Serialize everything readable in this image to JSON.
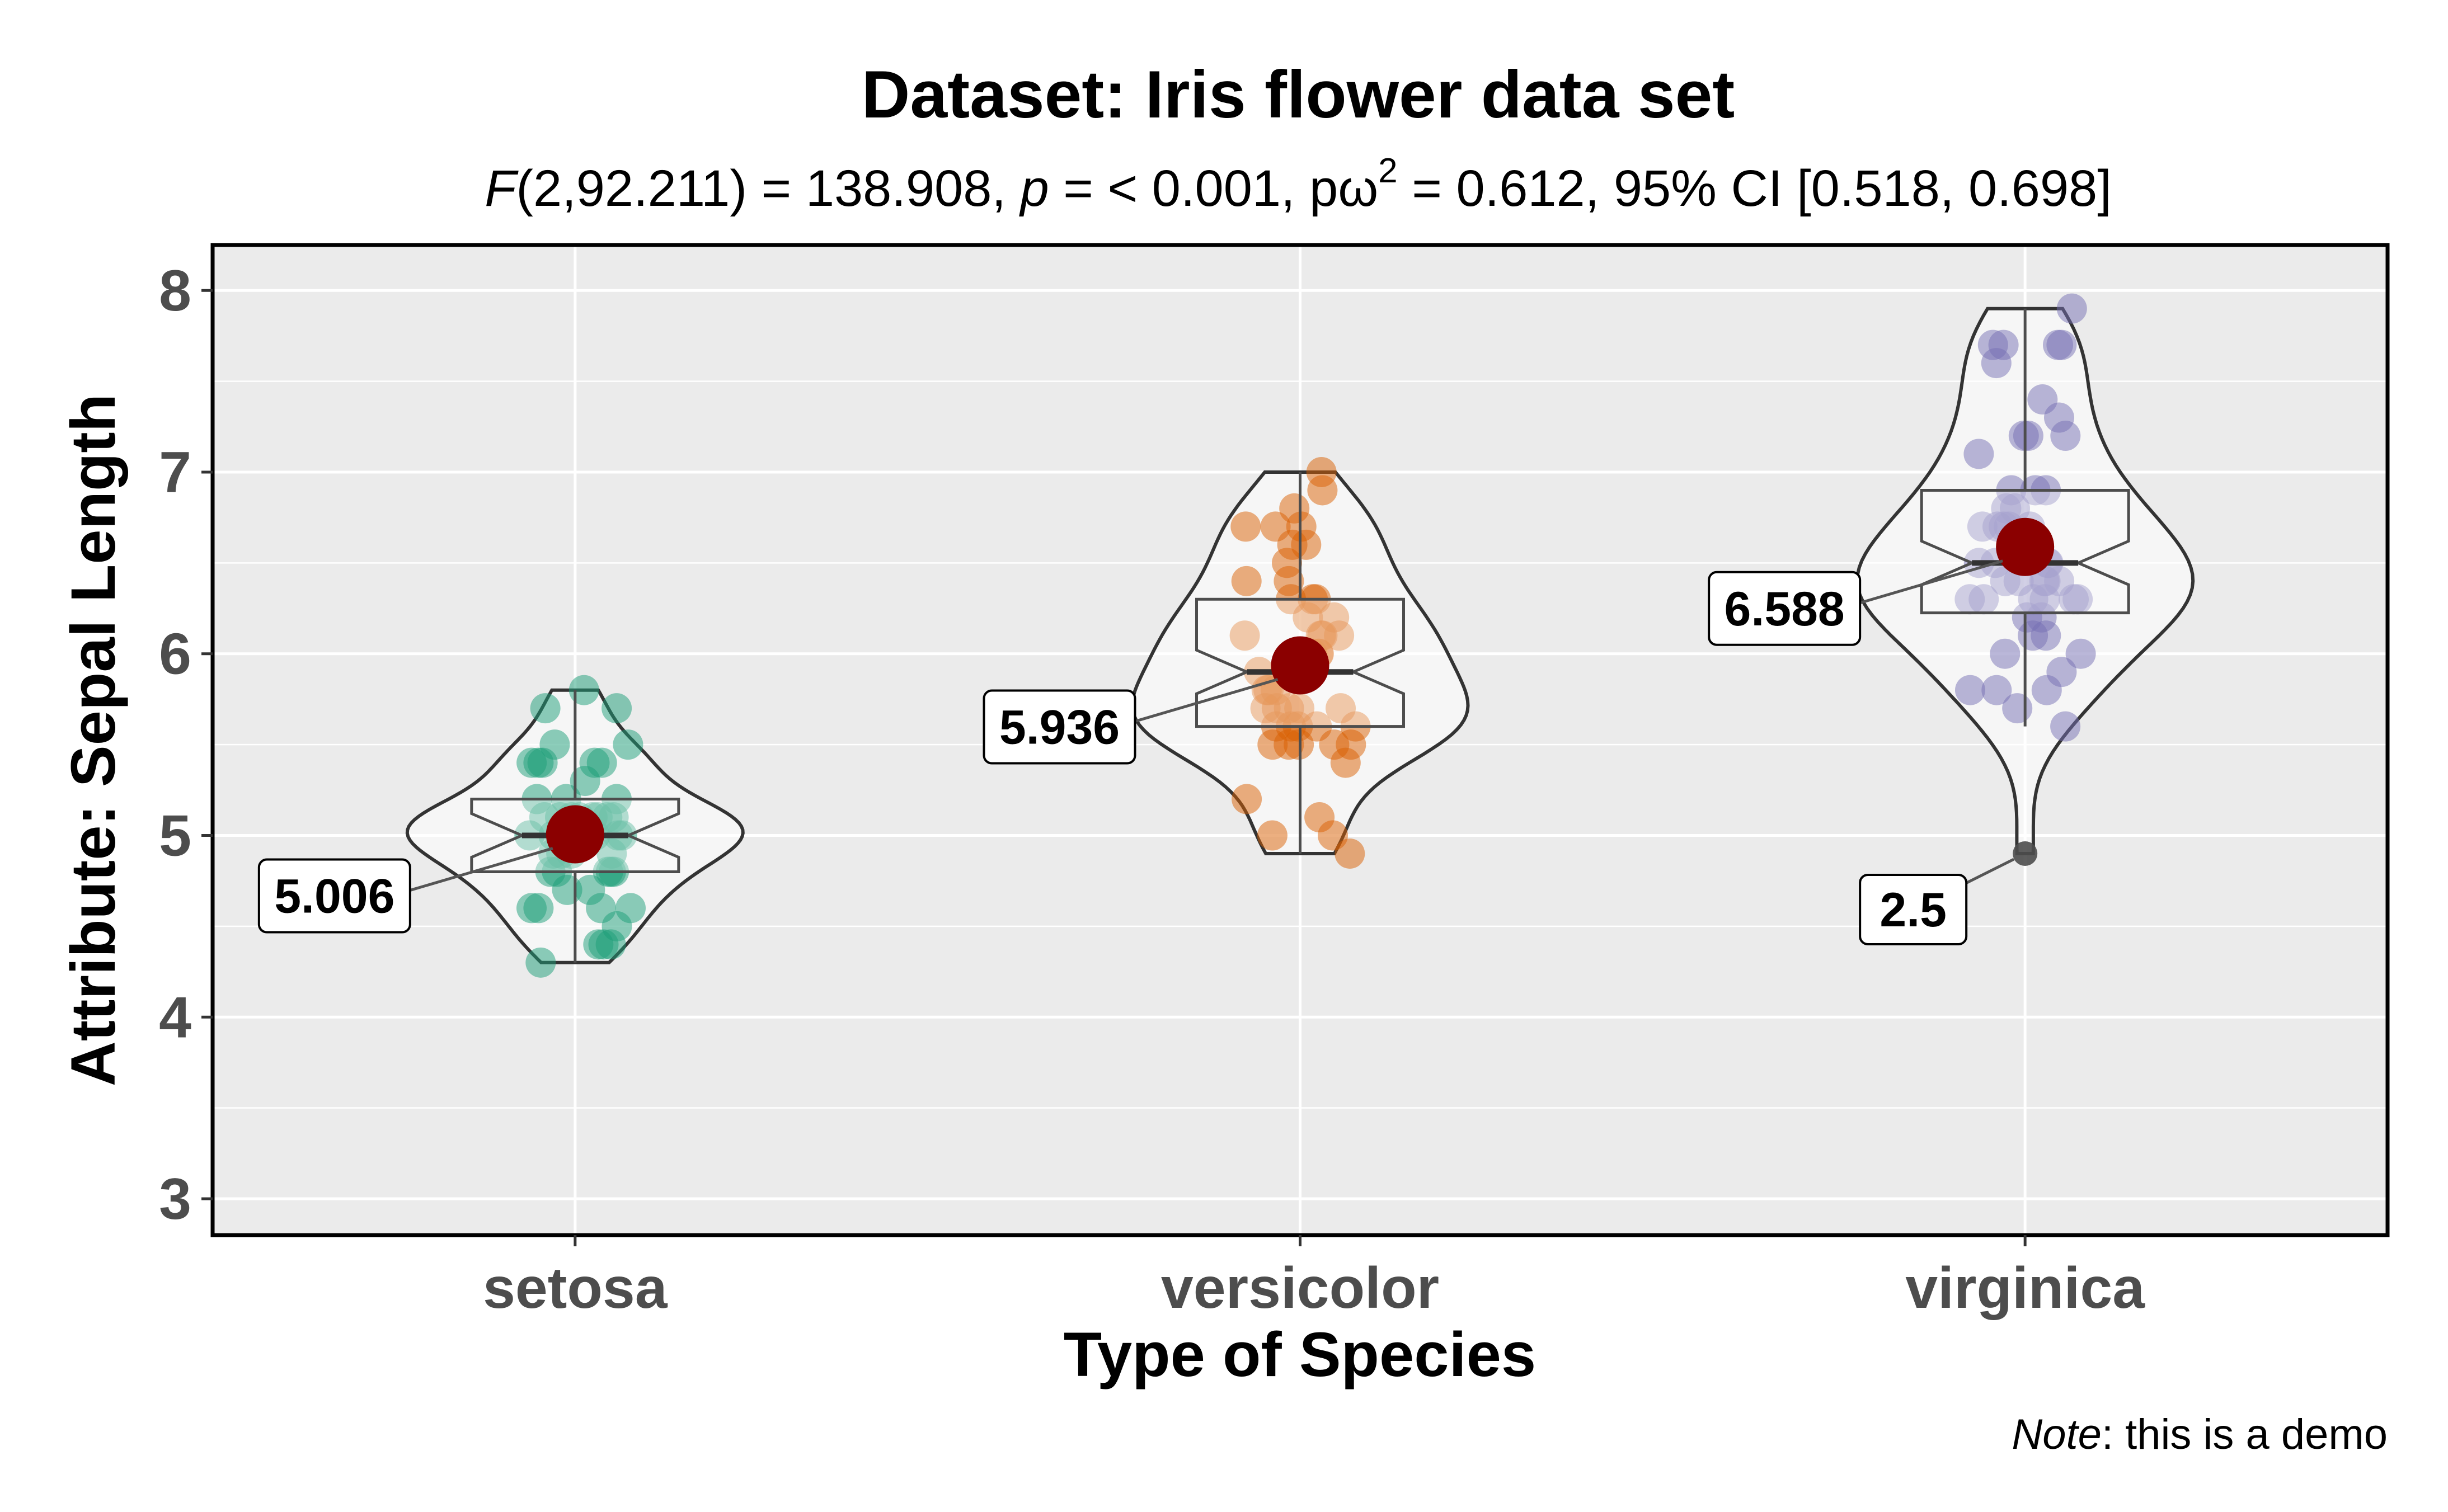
{
  "chart_data": {
    "type": "violin",
    "title": "Dataset: Iris flower data set",
    "subtitle": {
      "f_letter": "F",
      "f_rest": "(2,92.211) = 138.908, ",
      "p_letter": "p",
      "p_rest": " = < 0.001, pω",
      "sup": "2",
      "tail": " = 0.612, 95% CI [0.518, 0.698]"
    },
    "xlabel": "Type of Species",
    "ylabel": "Attribute: Sepal Length",
    "ylim": [
      2.8,
      8.25
    ],
    "yticks": [
      "3",
      "4",
      "5",
      "6",
      "7",
      "8"
    ],
    "grid": true,
    "caption": {
      "italic": "Note",
      "rest": ": this is a demo"
    },
    "categories": [
      "setosa",
      "versicolor",
      "virginica"
    ],
    "groups": [
      {
        "name": "setosa",
        "color": "#1b9e77",
        "mean": 5.006,
        "mean_label": "5.006",
        "box": {
          "q1": 4.8,
          "median": 5.0,
          "q3": 5.2,
          "whisker_low": 4.3,
          "whisker_high": 5.8
        },
        "points": [
          5.1,
          4.9,
          4.7,
          4.6,
          5.0,
          5.4,
          4.6,
          5.0,
          4.4,
          4.9,
          5.4,
          4.8,
          4.8,
          4.3,
          5.8,
          5.7,
          5.4,
          5.1,
          5.7,
          5.1,
          5.4,
          5.1,
          4.6,
          5.1,
          4.8,
          5.0,
          5.0,
          5.2,
          5.2,
          4.7,
          4.8,
          5.4,
          5.2,
          5.5,
          4.9,
          5.0,
          5.5,
          4.9,
          4.4,
          5.1,
          5.0,
          4.5,
          4.4,
          5.0,
          5.1,
          4.8,
          5.1,
          4.6,
          5.3,
          5.0
        ]
      },
      {
        "name": "versicolor",
        "color": "#d95f02",
        "mean": 5.936,
        "mean_label": "5.936",
        "box": {
          "q1": 5.6,
          "median": 5.9,
          "q3": 6.3,
          "whisker_low": 4.9,
          "whisker_high": 7.0
        },
        "points": [
          7.0,
          6.4,
          6.9,
          5.5,
          6.5,
          5.7,
          6.3,
          4.9,
          6.6,
          5.2,
          5.0,
          5.9,
          6.0,
          6.1,
          5.6,
          6.7,
          5.6,
          5.8,
          6.2,
          5.6,
          5.9,
          6.1,
          6.3,
          6.1,
          6.4,
          6.6,
          6.8,
          6.7,
          6.0,
          5.7,
          5.5,
          5.5,
          5.8,
          6.0,
          5.4,
          6.0,
          6.7,
          6.3,
          5.6,
          5.5,
          5.5,
          6.1,
          5.8,
          5.0,
          5.6,
          5.7,
          5.7,
          6.2,
          5.1,
          5.7
        ]
      },
      {
        "name": "virginica",
        "color": "#7570b3",
        "mean": 6.588,
        "mean_label": "6.588",
        "outlier": 4.9,
        "outlier_label": "2.5",
        "box": {
          "q1": 6.225,
          "median": 6.5,
          "q3": 6.9,
          "whisker_low": 5.6,
          "whisker_high": 7.9
        },
        "points": [
          6.3,
          5.8,
          7.1,
          6.3,
          6.5,
          7.6,
          4.9,
          7.3,
          6.7,
          7.2,
          6.5,
          6.4,
          6.8,
          5.7,
          5.8,
          6.4,
          6.5,
          7.7,
          7.7,
          6.0,
          6.9,
          5.6,
          7.7,
          6.3,
          6.7,
          7.2,
          6.2,
          6.1,
          6.4,
          7.2,
          7.4,
          7.9,
          6.4,
          6.3,
          6.1,
          7.7,
          6.3,
          6.4,
          6.0,
          6.9,
          6.7,
          6.9,
          5.8,
          6.8,
          6.7,
          6.7,
          6.3,
          6.5,
          6.2,
          5.9
        ]
      }
    ],
    "mean_color": "#8b0000"
  }
}
